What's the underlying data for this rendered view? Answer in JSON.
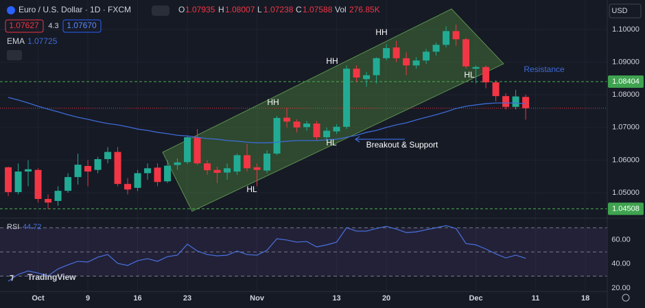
{
  "header": {
    "symbol": "Euro / U.S. Dollar · 1D · FXCM",
    "o": "O",
    "h": "H",
    "l": "L",
    "c": "C",
    "vol": "Vol",
    "vol_value": "276.85K",
    "bid": "1.07627",
    "spread": "4.3",
    "ask": "1.07670",
    "ema_label": "EMA",
    "currency": "USD",
    "rsi_label": "RSI",
    "brand": "TradingView"
  },
  "chart_data": [
    {
      "type": "candlestick",
      "open": [
        1.0578,
        1.0502,
        1.0565,
        1.057,
        1.0481,
        1.0475,
        1.0506,
        1.0548,
        1.0582,
        1.057,
        1.0603,
        1.0625,
        1.0527,
        1.0515,
        1.056,
        1.0577,
        1.0535,
        1.0585,
        1.0594,
        1.067,
        1.059,
        1.057,
        1.0562,
        1.0565,
        1.0615,
        1.0578,
        1.0568,
        1.062,
        1.073,
        1.0718,
        1.0701,
        1.0712,
        1.067,
        1.0688,
        1.0702,
        1.088,
        1.0848,
        1.086,
        1.0912,
        1.0945,
        1.0912,
        1.089,
        1.0905,
        1.0932,
        1.0953,
        1.0995,
        1.097,
        1.088,
        1.0885,
        1.0838,
        1.0796,
        1.0763,
        1.07935
      ],
      "high": [
        1.058,
        1.059,
        1.06,
        1.0575,
        1.0495,
        1.052,
        1.056,
        1.062,
        1.06,
        1.061,
        1.064,
        1.064,
        1.0545,
        1.057,
        1.059,
        1.059,
        1.06,
        1.0605,
        1.0675,
        1.0695,
        1.06,
        1.058,
        1.059,
        1.062,
        1.065,
        1.059,
        1.063,
        1.0735,
        1.076,
        1.0725,
        1.072,
        1.072,
        1.07,
        1.071,
        1.089,
        1.089,
        1.087,
        1.0915,
        1.0955,
        1.0965,
        1.093,
        1.0915,
        1.094,
        1.096,
        1.101,
        1.1015,
        1.0975,
        1.089,
        1.089,
        1.0845,
        1.0805,
        1.0815,
        1.08007
      ],
      "low": [
        1.049,
        1.0495,
        1.052,
        1.047,
        1.045,
        1.046,
        1.05,
        1.0525,
        1.052,
        1.056,
        1.059,
        1.052,
        1.0495,
        1.0505,
        1.054,
        1.052,
        1.053,
        1.057,
        1.0588,
        1.0585,
        1.0555,
        1.053,
        1.054,
        1.0555,
        1.0565,
        1.052,
        1.056,
        1.0615,
        1.07,
        1.0685,
        1.069,
        1.066,
        1.066,
        1.068,
        1.0695,
        1.084,
        1.0825,
        1.0835,
        1.0905,
        1.09,
        1.086,
        1.088,
        1.0895,
        1.092,
        1.0945,
        1.095,
        1.088,
        1.0835,
        1.082,
        1.078,
        1.0755,
        1.0755,
        1.07238
      ],
      "close": [
        1.0502,
        1.0565,
        1.0572,
        1.0481,
        1.047,
        1.0506,
        1.0548,
        1.0586,
        1.0565,
        1.0603,
        1.0625,
        1.0527,
        1.051,
        1.056,
        1.0575,
        1.0533,
        1.0583,
        1.0593,
        1.067,
        1.059,
        1.0569,
        1.0561,
        1.0575,
        1.0615,
        1.0575,
        1.057,
        1.062,
        1.0729,
        1.0718,
        1.07,
        1.0712,
        1.067,
        1.069,
        1.0702,
        1.088,
        1.0853,
        1.086,
        1.0912,
        1.0943,
        1.0912,
        1.089,
        1.0905,
        1.0932,
        1.0953,
        1.0995,
        1.097,
        1.0887,
        1.0885,
        1.0838,
        1.0796,
        1.0763,
        1.0795,
        1.07588
      ],
      "ema": {
        "name": "EMA",
        "color": "#3d6bd6",
        "values": [
          1.0792,
          1.0784,
          1.0775,
          1.0765,
          1.0756,
          1.0748,
          1.0739,
          1.0731,
          1.0725,
          1.0718,
          1.0712,
          1.0708,
          1.0702,
          1.0695,
          1.0691,
          1.0685,
          1.0681,
          1.0676,
          1.0674,
          1.067,
          1.0666,
          1.0664,
          1.066,
          1.0658,
          1.0655,
          1.0653,
          1.0653,
          1.0655,
          1.0658,
          1.066,
          1.066,
          1.066,
          1.0662,
          1.0664,
          1.067,
          1.0676,
          1.0685,
          1.0691,
          1.07,
          1.0708,
          1.0714,
          1.0723,
          1.0731,
          1.0739,
          1.0748,
          1.0758,
          1.0765,
          1.0769,
          1.0773,
          1.0775,
          1.0775,
          1.0775,
          1.07725
        ]
      },
      "up_color": "#22ab94",
      "down_color": "#f23645",
      "xlim": [
        -0.83,
        60.2
      ],
      "xticks": [
        {
          "value": 3,
          "label": "Oct"
        },
        {
          "value": 8,
          "label": "9"
        },
        {
          "value": 13,
          "label": "16"
        },
        {
          "value": 18,
          "label": "23"
        },
        {
          "value": 25,
          "label": "Nov"
        },
        {
          "value": 33,
          "label": "13"
        },
        {
          "value": 38,
          "label": "20"
        },
        {
          "value": 47,
          "label": "Dec"
        },
        {
          "value": 53,
          "label": "11"
        },
        {
          "value": 58,
          "label": "18"
        }
      ],
      "ylim": [
        1.04286,
        1.10903
      ],
      "yticks": [
        {
          "value": 1.1,
          "label": "1.10000"
        },
        {
          "value": 1.09,
          "label": "1.09000"
        },
        {
          "value": 1.08,
          "label": "1.08000"
        },
        {
          "value": 1.07,
          "label": "1.07000"
        },
        {
          "value": 1.06,
          "label": "1.06000"
        },
        {
          "value": 1.05,
          "label": "1.05000"
        }
      ],
      "levels": [
        1.08404,
        1.04508
      ],
      "annotations": [
        "HH",
        "HH",
        "HH",
        "HL",
        "HL",
        "HL",
        "Resistance",
        "Breakout & Support"
      ]
    },
    {
      "type": "line",
      "name": "RSI",
      "series": [
        {
          "name": "RSI",
          "color": "#4a72e0",
          "values": [
            25.7,
            31.4,
            34.2,
            32.5,
            30.2,
            35.9,
            39.3,
            42.2,
            41.6,
            45.6,
            47.8,
            40.5,
            38.8,
            42.7,
            44.4,
            42.2,
            46.1,
            47.3,
            56.4,
            50.7,
            47.8,
            46.7,
            47.3,
            50.7,
            47.8,
            47.3,
            51.3,
            60.9,
            59.8,
            58.1,
            58.6,
            54.1,
            55.8,
            58.1,
            70.0,
            67.2,
            67.2,
            69.4,
            71.1,
            68.9,
            66.0,
            66.6,
            68.3,
            70.0,
            71.7,
            69.4,
            56.9,
            55.8,
            52.4,
            48.4,
            45.0,
            47.3,
            44.72
          ]
        }
      ],
      "ylim": [
        17.2,
        76.8
      ],
      "yticks": [
        {
          "value": 60,
          "label": "60.00"
        },
        {
          "value": 40,
          "label": "40.00"
        },
        {
          "value": 20,
          "label": "20.00"
        }
      ],
      "levels": [
        70,
        50,
        30
      ]
    }
  ]
}
